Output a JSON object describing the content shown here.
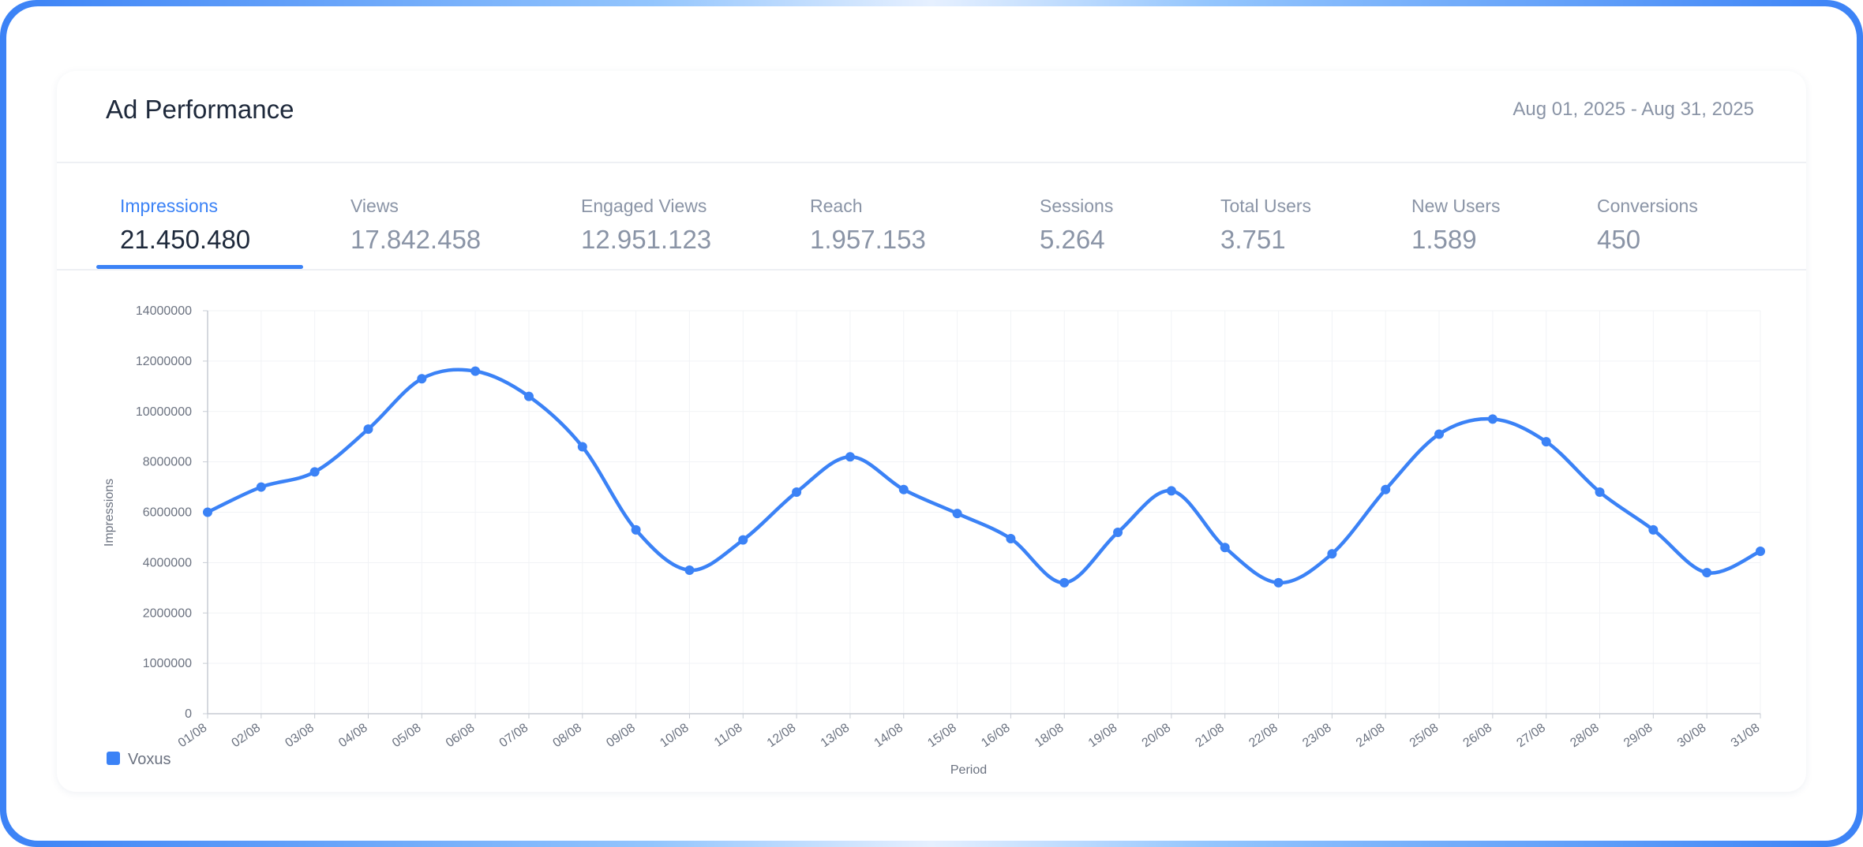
{
  "header": {
    "title": "Ad Performance",
    "date_range": "Aug 01, 2025 - Aug 31, 2025"
  },
  "tabs": [
    {
      "label": "Impressions",
      "value": "21.450.480"
    },
    {
      "label": "Views",
      "value": "17.842.458"
    },
    {
      "label": "Engaged Views",
      "value": "12.951.123"
    },
    {
      "label": "Reach",
      "value": "1.957.153"
    },
    {
      "label": "Sessions",
      "value": "5.264"
    },
    {
      "label": "Total Users",
      "value": "3.751"
    },
    {
      "label": "New Users",
      "value": "1.589"
    },
    {
      "label": "Conversions",
      "value": "450"
    }
  ],
  "chart_data": {
    "type": "line",
    "y_label": "Impressions",
    "x_label": "Period",
    "categories": [
      "01/08",
      "02/08",
      "03/08",
      "04/08",
      "05/08",
      "06/08",
      "07/08",
      "08/08",
      "09/08",
      "10/08",
      "11/08",
      "12/08",
      "13/08",
      "14/08",
      "15/08",
      "16/08",
      "18/08",
      "19/08",
      "20/08",
      "21/08",
      "22/08",
      "23/08",
      "24/08",
      "25/08",
      "26/08",
      "27/08",
      "28/08",
      "29/08",
      "30/08",
      "31/08"
    ],
    "series": [
      {
        "name": "Voxus",
        "color": "#3b82f6",
        "values": [
          6000000,
          7000000,
          7600000,
          9300000,
          11300000,
          11600000,
          10600000,
          8600000,
          5300000,
          3700000,
          4900000,
          6800000,
          8200000,
          6900000,
          5950000,
          4950000,
          3200000,
          5200000,
          6850000,
          4600000,
          3200000,
          4350000,
          6900000,
          9100000,
          9700000,
          8800000,
          6800000,
          5300000,
          3600000,
          4450000
        ]
      }
    ],
    "ylim": [
      0,
      14000000
    ],
    "yticks": [
      0,
      1000000,
      2000000,
      4000000,
      6000000,
      8000000,
      10000000,
      12000000,
      14000000
    ],
    "grid": true,
    "legend": "bottom-left"
  }
}
